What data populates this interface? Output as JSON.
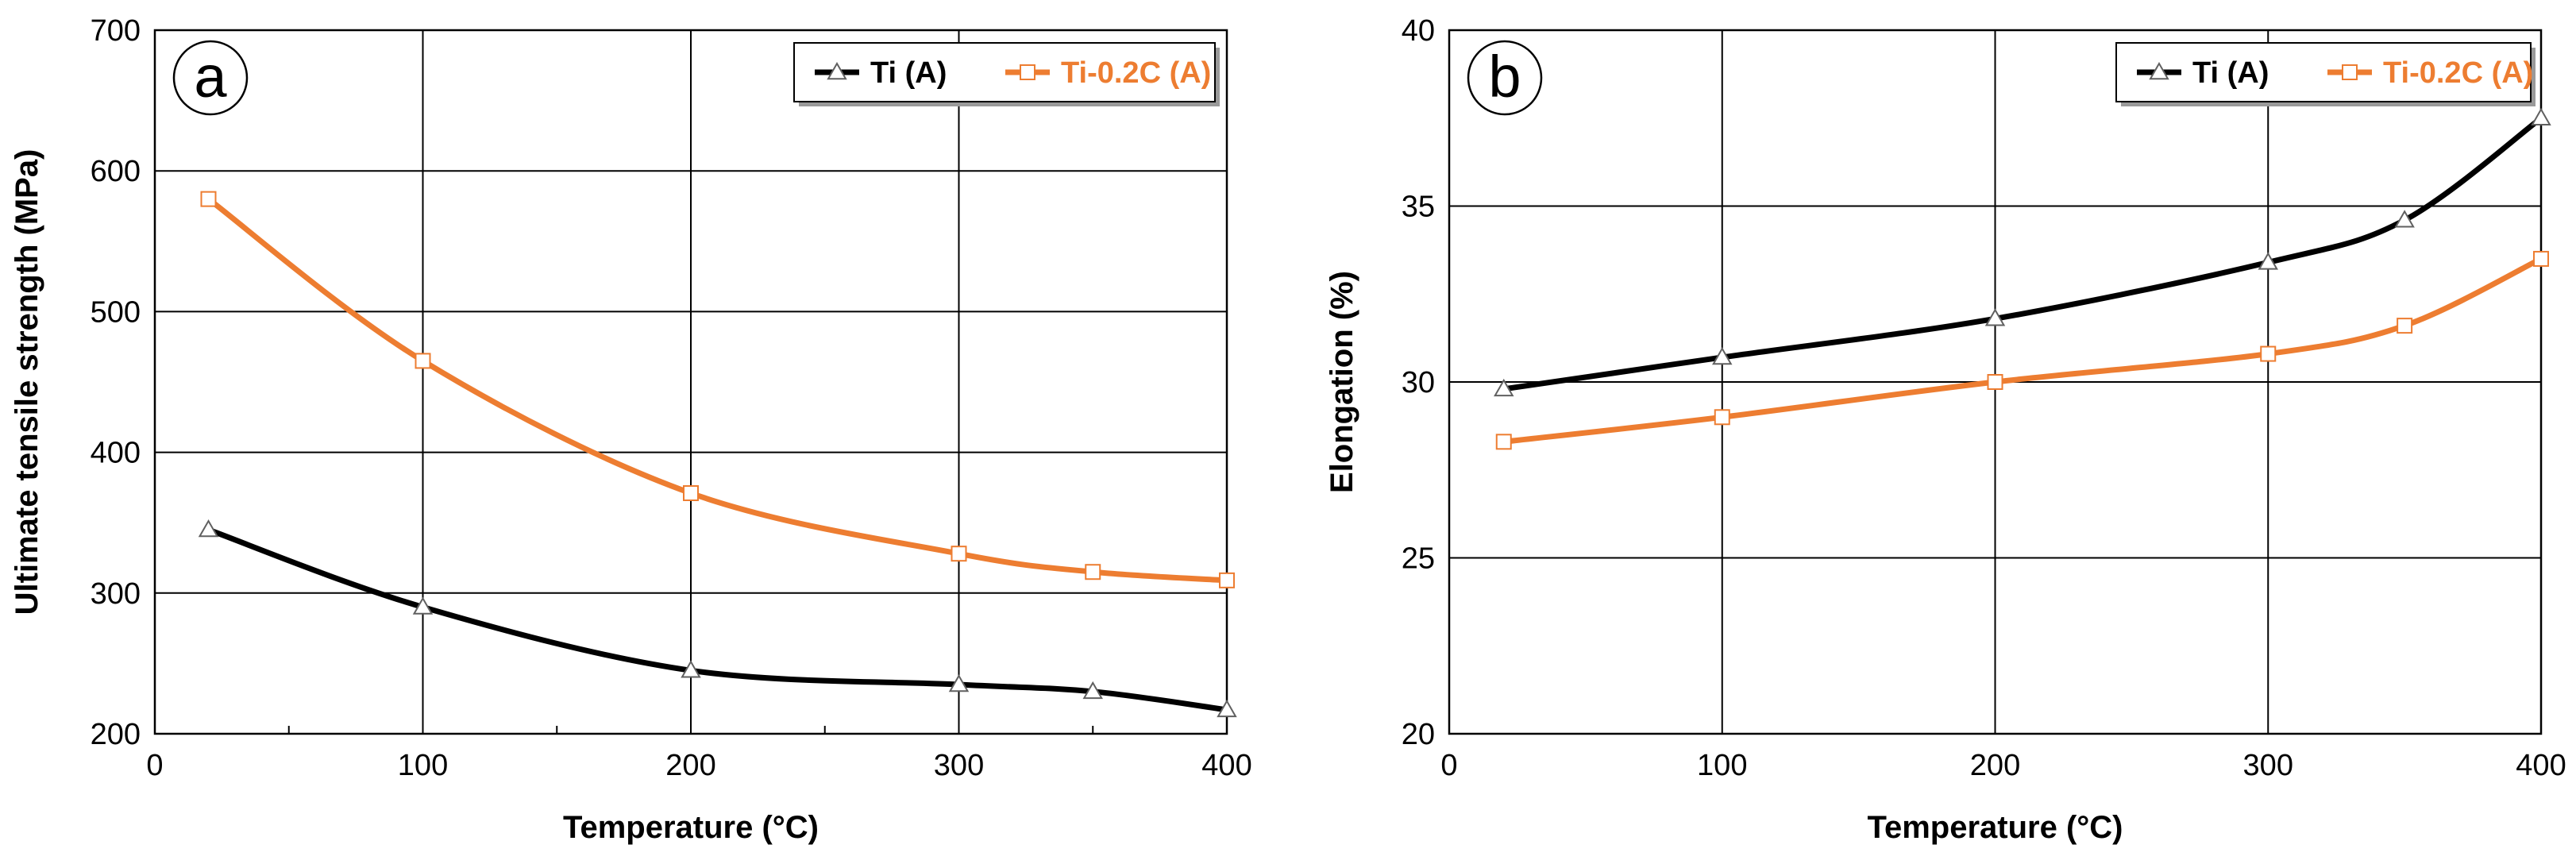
{
  "chart_data": [
    {
      "type": "line",
      "panel_label": "a",
      "title": "",
      "xlabel": "Temperature (°C)",
      "ylabel": "Ultimate tensile strength (MPa)",
      "xlim": [
        0,
        400
      ],
      "ylim": [
        200,
        700
      ],
      "xticks": [
        0,
        100,
        200,
        300,
        400
      ],
      "xtick_labels": [
        "0",
        "100",
        "200",
        "300",
        "400"
      ],
      "yticks": [
        200,
        300,
        400,
        500,
        600,
        700
      ],
      "ytick_labels": [
        "200",
        "300",
        "400",
        "500",
        "600",
        "700"
      ],
      "xgrid_minor": [
        50,
        150,
        250,
        350
      ],
      "grid": true,
      "legend_position": "top-right",
      "series": [
        {
          "name": "Ti (A)",
          "color": "#000000",
          "marker": "triangle",
          "x": [
            20,
            100,
            200,
            300,
            350,
            400
          ],
          "values": [
            345,
            290,
            245,
            235,
            230,
            217
          ]
        },
        {
          "name": "Ti-0.2C (A)",
          "color": "#ED7D31",
          "marker": "square",
          "x": [
            20,
            100,
            200,
            300,
            350,
            400
          ],
          "values": [
            580,
            465,
            371,
            328,
            315,
            309
          ]
        }
      ]
    },
    {
      "type": "line",
      "panel_label": "b",
      "title": "",
      "xlabel": "Temperature (°C)",
      "ylabel": "Elongation (%)",
      "xlim": [
        0,
        400
      ],
      "ylim": [
        20,
        40
      ],
      "xticks": [
        0,
        100,
        200,
        300,
        400
      ],
      "xtick_labels": [
        "0",
        "100",
        "200",
        "300",
        "400"
      ],
      "yticks": [
        20,
        25,
        30,
        35,
        40
      ],
      "ytick_labels": [
        "20",
        "25",
        "30",
        "35",
        "40"
      ],
      "xgrid_minor": [],
      "grid": true,
      "legend_position": "top-right",
      "series": [
        {
          "name": "Ti (A)",
          "color": "#000000",
          "marker": "triangle",
          "x": [
            20,
            100,
            200,
            300,
            350,
            400
          ],
          "values": [
            29.8,
            30.7,
            31.8,
            33.4,
            34.6,
            37.5
          ]
        },
        {
          "name": "Ti-0.2C (A)",
          "color": "#ED7D31",
          "marker": "square",
          "x": [
            20,
            100,
            200,
            300,
            350,
            400
          ],
          "values": [
            28.3,
            29.0,
            30.0,
            30.8,
            31.6,
            33.5
          ]
        }
      ]
    }
  ]
}
